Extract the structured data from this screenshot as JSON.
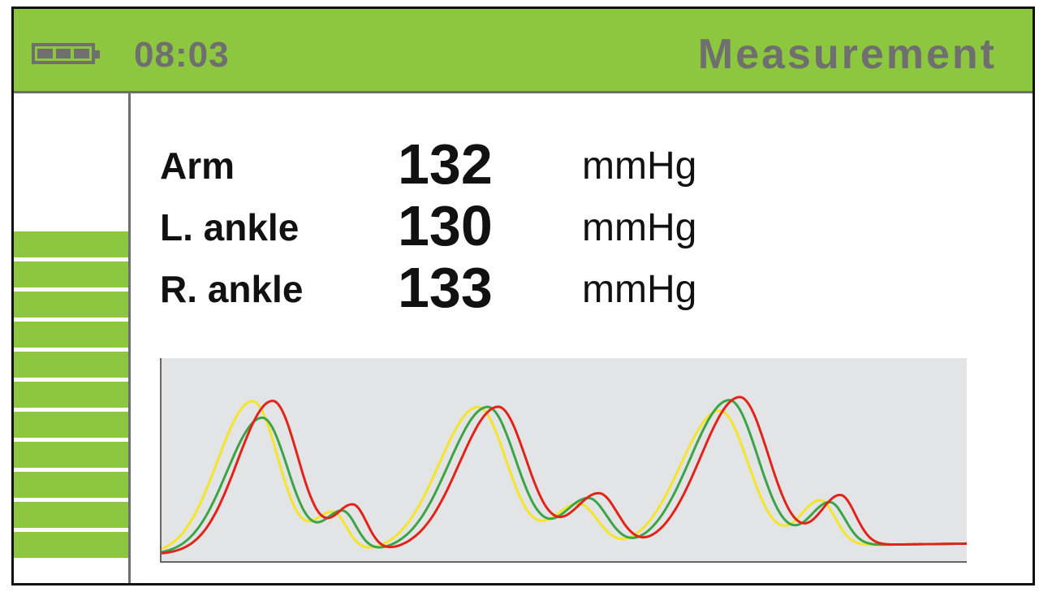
{
  "header": {
    "battery_icon": "battery-full-icon",
    "time": "08:03",
    "title": "Measurement",
    "accent_color": "#8dc63f",
    "text_color": "#6f6f6f"
  },
  "sidebar": {
    "level_bars": 11,
    "bar_color": "#8dc63f"
  },
  "readings": [
    {
      "label": "Arm",
      "value": "132",
      "unit": "mmHg"
    },
    {
      "label": "L. ankle",
      "value": "130",
      "unit": "mmHg"
    },
    {
      "label": "R. ankle",
      "value": "133",
      "unit": "mmHg"
    }
  ],
  "waveform": {
    "background": "#e3e4e5",
    "series": [
      {
        "color": "#f5e52a"
      },
      {
        "color": "#3aa447"
      },
      {
        "color": "#e2231a"
      }
    ]
  }
}
